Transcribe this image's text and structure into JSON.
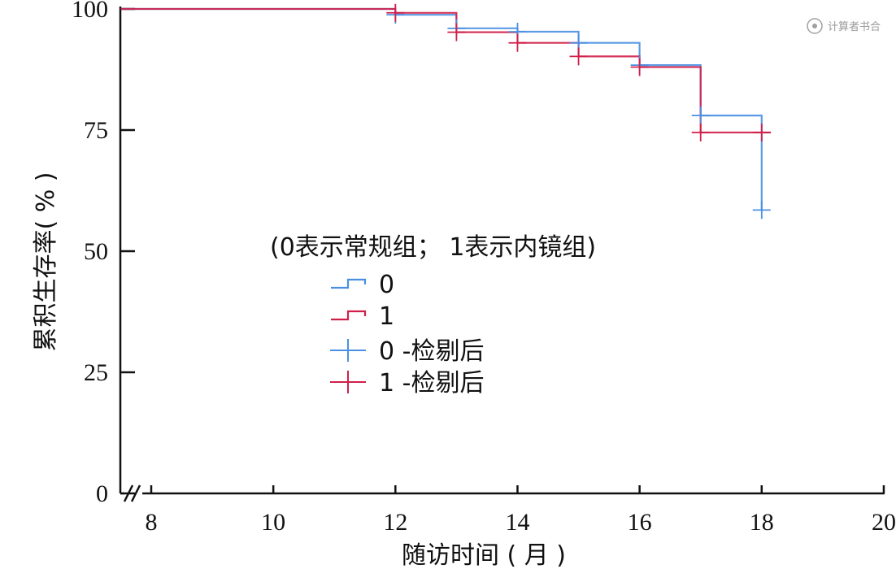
{
  "watermark": {
    "text": "计算者书合"
  },
  "chart_data": {
    "type": "line",
    "subtype": "kaplan-meier-step",
    "title": "",
    "xlabel": "随访时间 ( 月 )",
    "ylabel": "累积生存率( % )",
    "xlim": [
      7.5,
      20
    ],
    "ylim": [
      0,
      100
    ],
    "x_ticks": [
      8,
      10,
      12,
      14,
      16,
      18,
      20
    ],
    "y_ticks": [
      0,
      25,
      50,
      75,
      100
    ],
    "axis_break": true,
    "grid": false,
    "legend": {
      "title": "(0表示常规组； 1表示内镜组)",
      "placement": "center",
      "entries": [
        "0",
        "1",
        "0 -检剔后",
        "1 -检剔后"
      ]
    },
    "series": [
      {
        "name": "0",
        "color": "#4a90e2",
        "kind": "step",
        "points": [
          [
            7.5,
            100
          ],
          [
            12,
            100
          ],
          [
            12,
            98.8
          ],
          [
            13,
            98.8
          ],
          [
            13,
            96
          ],
          [
            14,
            96
          ],
          [
            14,
            95.3
          ],
          [
            15,
            95.3
          ],
          [
            15,
            93
          ],
          [
            16,
            93
          ],
          [
            16,
            88.4
          ],
          [
            17,
            88.4
          ],
          [
            17,
            78
          ],
          [
            18,
            78
          ],
          [
            18,
            58.5
          ]
        ]
      },
      {
        "name": "1",
        "color": "#d0204a",
        "kind": "step",
        "points": [
          [
            7.5,
            100
          ],
          [
            12,
            100
          ],
          [
            12,
            99.2
          ],
          [
            13,
            99.2
          ],
          [
            13,
            95.2
          ],
          [
            14,
            95.2
          ],
          [
            14,
            93
          ],
          [
            15,
            93
          ],
          [
            15,
            90.2
          ],
          [
            16,
            90.2
          ],
          [
            16,
            88
          ],
          [
            17,
            88
          ],
          [
            17,
            74.5
          ],
          [
            18.15,
            74.5
          ]
        ]
      },
      {
        "name": "0 -检剔后",
        "color": "#4a90e2",
        "kind": "censor",
        "points": [
          [
            12,
            98.8
          ],
          [
            13,
            96
          ],
          [
            14,
            95.3
          ],
          [
            15,
            93
          ],
          [
            16,
            88.4
          ],
          [
            17,
            78
          ],
          [
            18,
            58.5
          ]
        ]
      },
      {
        "name": "1 -检剔后",
        "color": "#d0204a",
        "kind": "censor",
        "points": [
          [
            12,
            99.2
          ],
          [
            13,
            95.2
          ],
          [
            14,
            93
          ],
          [
            15,
            90.2
          ],
          [
            16,
            88
          ],
          [
            17,
            74.5
          ],
          [
            18,
            74.5
          ]
        ]
      }
    ]
  }
}
